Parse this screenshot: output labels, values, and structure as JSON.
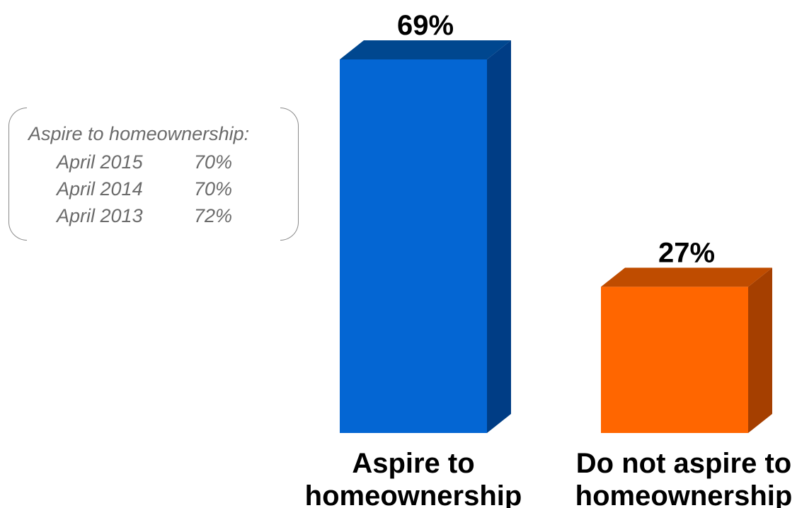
{
  "chart_data": {
    "type": "bar",
    "categories": [
      "Aspire to homeownership",
      "Do not aspire to homeownership"
    ],
    "category_lines": [
      [
        "Aspire to",
        "homeownership"
      ],
      [
        "Do not aspire to",
        "homeownership"
      ]
    ],
    "values": [
      69,
      27
    ],
    "value_labels": [
      "69%",
      "27%"
    ],
    "ylim": [
      0,
      69
    ],
    "grid": false,
    "bar_colors": [
      {
        "front": "#0466d3",
        "side": "#003d85",
        "top": "#00478f"
      },
      {
        "front": "#ff6600",
        "side": "#a53f00",
        "top": "#bf4c00"
      }
    ]
  },
  "history_callout": {
    "title": "Aspire to homeownership:",
    "rows": [
      {
        "period": "April 2015",
        "value": "70%"
      },
      {
        "period": "April 2014",
        "value": "70%"
      },
      {
        "period": "April 2013",
        "value": "72%"
      }
    ]
  }
}
